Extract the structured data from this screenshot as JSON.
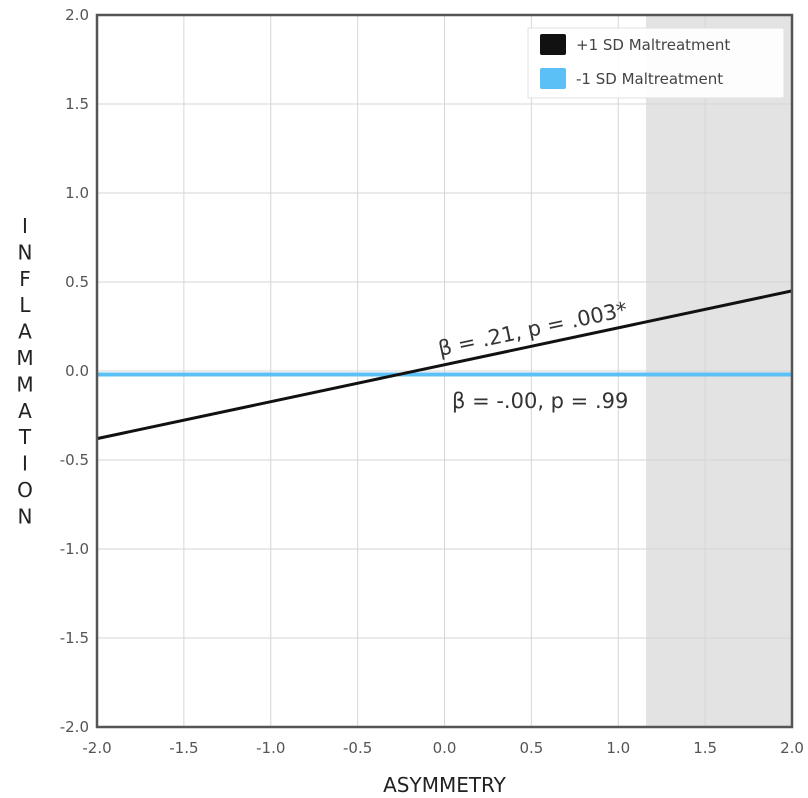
{
  "chart_data": {
    "type": "line",
    "title": "",
    "xlabel": "ASYMMETRY",
    "ylabel": "INFLAMMATION",
    "xlim": [
      -2.0,
      2.0
    ],
    "ylim": [
      -2.0,
      2.0
    ],
    "x_ticks": [
      "-2.0",
      "-1.5",
      "-1.0",
      "-0.5",
      "0.0",
      "0.5",
      "1.0",
      "1.5",
      "2.0"
    ],
    "y_ticks": [
      "2.0",
      "1.5",
      "1.0",
      "0.5",
      "0.0",
      "-0.5",
      "-1.0",
      "-1.5",
      "-2.0"
    ],
    "grid": true,
    "legend_position": "top-right",
    "shaded_region": {
      "x_start": 1.16,
      "x_end": 2.0,
      "color": "#e3e3e3"
    },
    "series": [
      {
        "name": "+1 SD Maltreatment",
        "color": "#111111",
        "x": [
          -2.0,
          2.0
        ],
        "y": [
          -0.38,
          0.45
        ]
      },
      {
        "name": "-1 SD Maltreatment",
        "color": "#5bc0f5",
        "x": [
          -2.0,
          2.0
        ],
        "y": [
          -0.02,
          -0.02
        ]
      }
    ],
    "annotations": [
      {
        "text": "β = .21, p = .003*",
        "series": 0
      },
      {
        "text": "β = -.00, p = .99",
        "series": 1
      }
    ]
  }
}
